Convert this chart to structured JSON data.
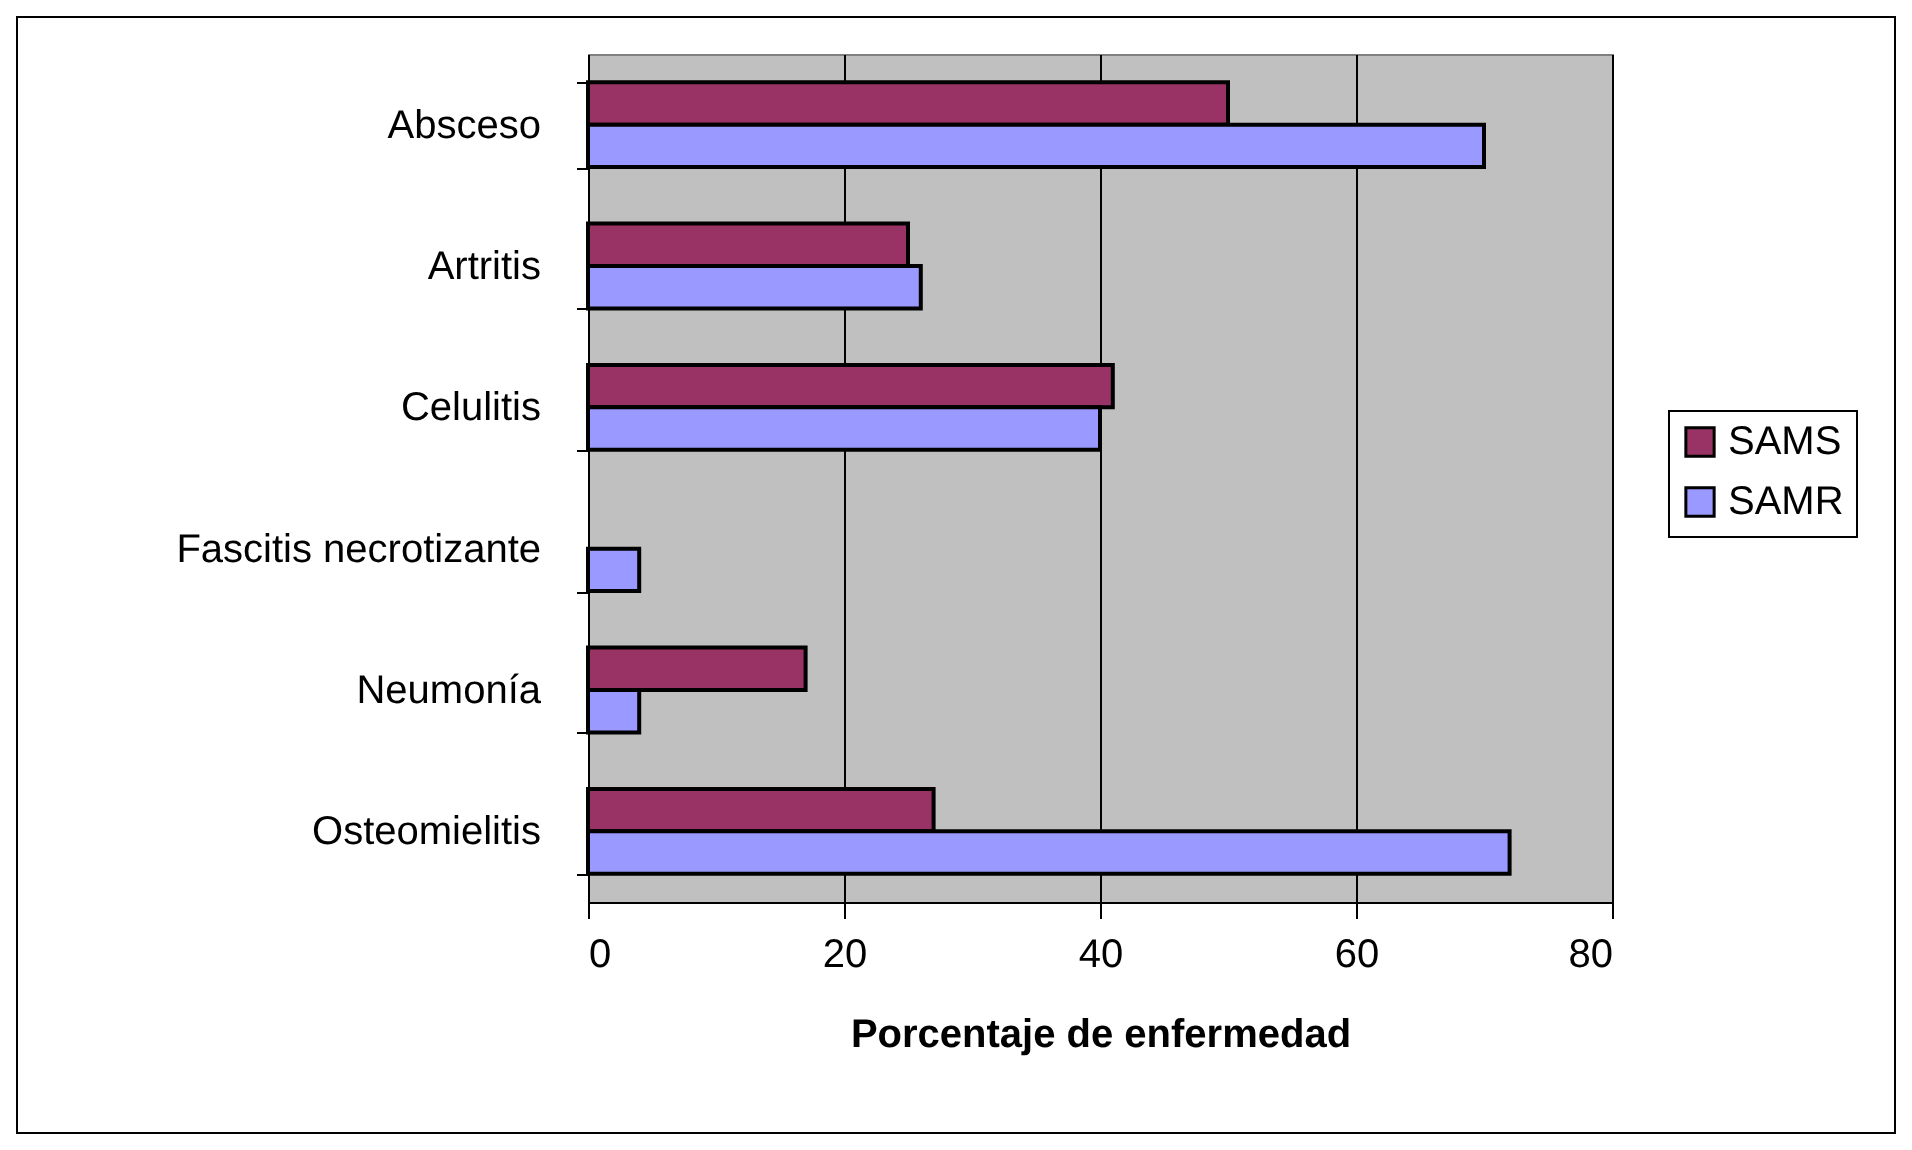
{
  "chart_data": {
    "type": "bar",
    "orientation": "horizontal",
    "xlabel": "Porcentaje de enfermedad",
    "categories": [
      "Absceso",
      "Artritis",
      "Celulitis",
      "Fascitis necrotizante",
      "Neumonía",
      "Osteomielitis"
    ],
    "series": [
      {
        "name": "SAMS",
        "color": "#993366",
        "values": [
          50,
          25,
          41,
          null,
          17,
          27
        ]
      },
      {
        "name": "SAMR",
        "color": "#9999ff",
        "values": [
          70,
          26,
          40,
          4,
          4,
          72
        ]
      }
    ],
    "xlim": [
      0,
      80
    ],
    "xticks": [
      0,
      20,
      40,
      60,
      80
    ],
    "grid": "x",
    "legend": "right"
  }
}
